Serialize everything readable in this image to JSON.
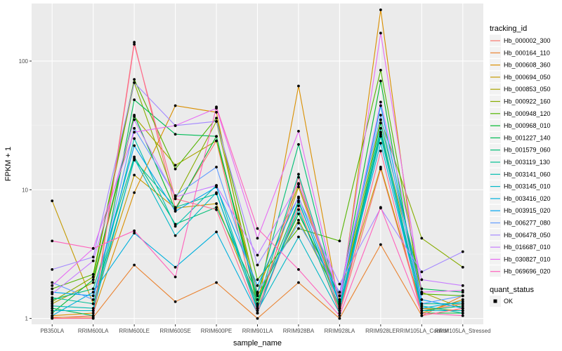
{
  "chart_data": {
    "type": "line",
    "xlabel": "sample_name",
    "ylabel": "FPKM + 1",
    "y_scale": "log10",
    "ylim": [
      0.9,
      280
    ],
    "y_ticks": [
      1,
      10,
      100
    ],
    "y_tick_labels": [
      "1",
      "10",
      "100"
    ],
    "grid": true,
    "legend_position": "right",
    "categories": [
      "PB350LA",
      "RRIM600LA",
      "RRIM600LE",
      "RRIM600SE",
      "RRIM600PE",
      "RRIM901LA",
      "RRIM928BA",
      "RRIM928LA",
      "RRIM928LE",
      "RRIM105LA_Control",
      "RRIM105LA_Stressed"
    ],
    "legend_title": "tracking_id",
    "shape_legend_title": "quant_status",
    "shape_legend_items": [
      "OK"
    ],
    "series": [
      {
        "name": "Hb_000002_300",
        "color": "#F8766D",
        "values": [
          1.01,
          1.05,
          140,
          7.2,
          24,
          1.1,
          7.5,
          1.1,
          14.5,
          1.15,
          1.3
        ]
      },
      {
        "name": "Hb_000164_110",
        "color": "#EA8331",
        "values": [
          1.02,
          1.02,
          2.6,
          1.35,
          1.9,
          1.0,
          1.9,
          1.0,
          3.75,
          1.05,
          1.5
        ]
      },
      {
        "name": "Hb_000608_360",
        "color": "#DA8F00",
        "values": [
          1.05,
          1.1,
          9.5,
          45,
          40,
          1.2,
          64,
          1.2,
          250,
          1.1,
          1.4
        ]
      },
      {
        "name": "Hb_000694_050",
        "color": "#C49A00",
        "values": [
          8.2,
          1.3,
          13,
          7.2,
          7.8,
          1.25,
          10.5,
          1.3,
          15,
          1.2,
          1.15
        ]
      },
      {
        "name": "Hb_000853_050",
        "color": "#A9A400",
        "values": [
          1.3,
          1.9,
          37,
          15.5,
          24,
          1.6,
          11,
          1.4,
          28,
          1.6,
          1.2
        ]
      },
      {
        "name": "Hb_000922_160",
        "color": "#87AC00",
        "values": [
          1.35,
          2.1,
          68,
          8.5,
          34,
          1.5,
          5.8,
          1.4,
          35,
          4.2,
          2.5
        ]
      },
      {
        "name": "Hb_000948_120",
        "color": "#53B400",
        "values": [
          1.7,
          2.2,
          72,
          14.5,
          36,
          2.0,
          5.0,
          4.0,
          85,
          1.55,
          1.5
        ]
      },
      {
        "name": "Hb_000968_010",
        "color": "#00B92E",
        "values": [
          1.1,
          2.0,
          38,
          7.0,
          26,
          1.4,
          6.5,
          1.5,
          70,
          1.1,
          1.1
        ]
      },
      {
        "name": "Hb_001227_140",
        "color": "#00BC56",
        "values": [
          1.2,
          1.05,
          50,
          27,
          26,
          1.3,
          8.2,
          1.2,
          33,
          1.7,
          1.6
        ]
      },
      {
        "name": "Hb_001579_060",
        "color": "#00BE76",
        "values": [
          1.4,
          1.7,
          18,
          5.4,
          7.3,
          1.55,
          22.5,
          1.2,
          28,
          1.15,
          1.25
        ]
      },
      {
        "name": "Hb_003119_130",
        "color": "#00BF93",
        "values": [
          1.45,
          1.3,
          17,
          7.3,
          9.3,
          1.3,
          13.2,
          1.25,
          26,
          1.3,
          1.3
        ]
      },
      {
        "name": "Hb_003141_060",
        "color": "#00BDAE",
        "values": [
          1.25,
          1.2,
          25,
          5.2,
          10.8,
          1.2,
          7.0,
          1.15,
          30,
          1.25,
          1.1
        ]
      },
      {
        "name": "Hb_003145_010",
        "color": "#00B8C7",
        "values": [
          1.15,
          1.15,
          17.5,
          4.4,
          9.5,
          1.15,
          4.3,
          1.1,
          27,
          1.15,
          1.15
        ]
      },
      {
        "name": "Hb_003416_020",
        "color": "#00B0DD",
        "values": [
          1.05,
          1.6,
          4.6,
          2.5,
          4.7,
          1.1,
          8.0,
          1.3,
          23,
          1.2,
          1.35
        ]
      },
      {
        "name": "Hb_003915_020",
        "color": "#00A5F0",
        "values": [
          1.6,
          1.5,
          22,
          6.8,
          10.5,
          1.8,
          8.8,
          1.35,
          45,
          1.4,
          1.2
        ]
      },
      {
        "name": "Hb_006277_080",
        "color": "#619CFF",
        "values": [
          1.9,
          1.4,
          30,
          9.0,
          15,
          1.6,
          5.5,
          1.6,
          38,
          1.3,
          1.5
        ]
      },
      {
        "name": "Hb_006478_050",
        "color": "#A58AFF",
        "values": [
          2.4,
          3.0,
          68,
          31.5,
          34,
          2.6,
          8.6,
          1.85,
          7.2,
          2.3,
          3.3
        ]
      },
      {
        "name": "Hb_016687_010",
        "color": "#C77CFF",
        "values": [
          1.55,
          2.8,
          35,
          8.8,
          10.8,
          3.1,
          11.2,
          1.5,
          48,
          2.0,
          1.8
        ]
      },
      {
        "name": "Hb_030827_010",
        "color": "#E76BF3",
        "values": [
          1.8,
          3.5,
          28,
          31.5,
          43,
          4.2,
          28.5,
          1.3,
          165,
          1.6,
          1.65
        ]
      },
      {
        "name": "Hb_069696_020",
        "color": "#FF62BC",
        "values": [
          4.0,
          3.5,
          4.8,
          2.1,
          44,
          5.0,
          2.4,
          1.05,
          7.3,
          1.1,
          1.05
        ]
      },
      {
        "name": "",
        "color": "#FF6C91",
        "values": [
          1.0,
          1.0,
          135,
          8.5,
          7.0,
          1.1,
          12.5,
          1.1,
          20,
          1.05,
          1.2
        ]
      }
    ]
  }
}
